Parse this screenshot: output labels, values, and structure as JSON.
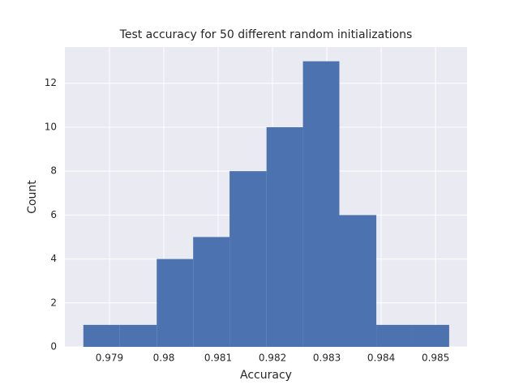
{
  "chart_data": {
    "type": "histogram",
    "title": "Test accuracy for 50 different random initializations",
    "x_label": "Accuracy",
    "y_label": "Count",
    "bins": [
      0.97852,
      0.97919,
      0.97987,
      0.98054,
      0.98121,
      0.98189,
      0.98256,
      0.98323,
      0.98391,
      0.98458,
      0.98525
    ],
    "counts": [
      1,
      1,
      4,
      5,
      8,
      10,
      13,
      6,
      1,
      1
    ],
    "color": "#4c72b0",
    "xlim": [
      0.97818,
      0.98558
    ],
    "xticks": [
      0.979,
      0.98,
      0.981,
      0.982,
      0.983,
      0.984,
      0.985
    ],
    "ylim": [
      0,
      13.65
    ],
    "yticks": [
      0,
      2,
      4,
      6,
      8,
      10,
      12
    ],
    "grid": true
  }
}
